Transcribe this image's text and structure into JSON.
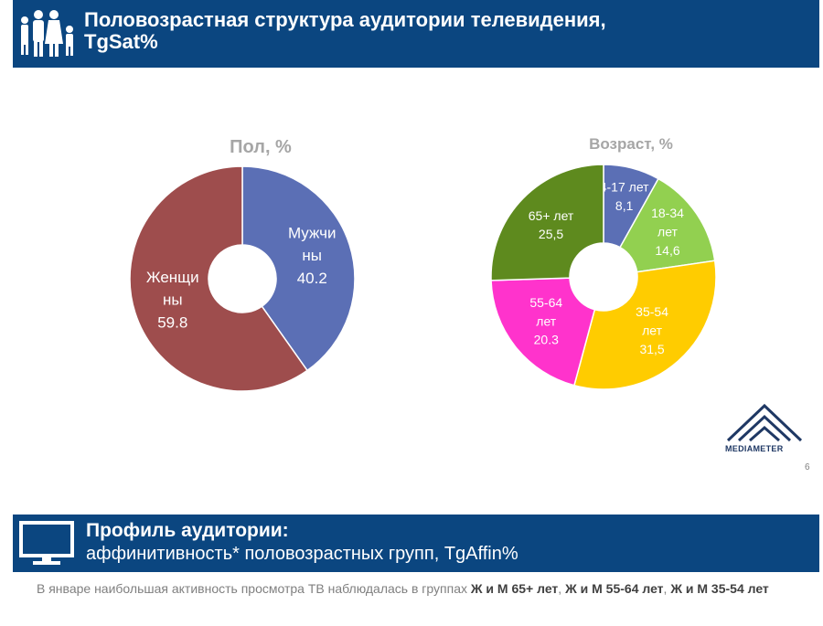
{
  "header": {
    "title_line1": "Половозрастная структура аудитории телевидения,",
    "title_line2": "TgSat%"
  },
  "chart_data": [
    {
      "type": "pie",
      "title": "Пол, %",
      "donut": true,
      "slices": [
        {
          "label": "Мужчины",
          "label_line1": "Мужчи",
          "label_line2": "ны",
          "value": 40.2,
          "value_text": "40.2",
          "color": "#5b6fb5"
        },
        {
          "label": "Женщины",
          "label_line1": "Женщи",
          "label_line2": "ны",
          "value": 59.8,
          "value_text": "59.8",
          "color": "#9e4d4d"
        }
      ]
    },
    {
      "type": "pie",
      "title": "Возраст, %",
      "donut": true,
      "slices": [
        {
          "label": "4-17 лет",
          "label_line1": "4-17 лет",
          "label_line2": "",
          "value": 8.1,
          "value_text": "8,1",
          "color": "#5b6fb5"
        },
        {
          "label": "18-34 лет",
          "label_line1": "18-34",
          "label_line2": "лет",
          "value": 14.6,
          "value_text": "14,6",
          "color": "#92d050"
        },
        {
          "label": "35-54 лет",
          "label_line1": "35-54",
          "label_line2": "лет",
          "value": 31.5,
          "value_text": "31,5",
          "color": "#ffcc00"
        },
        {
          "label": "55-64 лет",
          "label_line1": "55-64",
          "label_line2": "лет",
          "value": 20.3,
          "value_text": "20.3",
          "color": "#ff33cc"
        },
        {
          "label": "65+ лет",
          "label_line1": "65+ лет",
          "label_line2": "",
          "value": 25.5,
          "value_text": "25,5",
          "color": "#5e8a1e"
        }
      ]
    }
  ],
  "logo": {
    "text": "MEDIAMETER"
  },
  "page_number": "6",
  "profile": {
    "title": "Профиль аудитории:",
    "subtitle": "аффинитивность* половозрастных групп, TgAffin%"
  },
  "footnote": {
    "text_plain": "В январе наибольшая активность просмотра ТВ наблюдалась в группах ",
    "text_bold1": "Ж и М 65+ лет",
    "sep1": ", ",
    "text_bold2": "Ж и М 55-64 лет",
    "sep2": ", ",
    "text_bold3": "Ж и М 35-54 лет"
  },
  "colors": {
    "banner": "#0b4680",
    "title_grey": "#a6a6a6"
  }
}
